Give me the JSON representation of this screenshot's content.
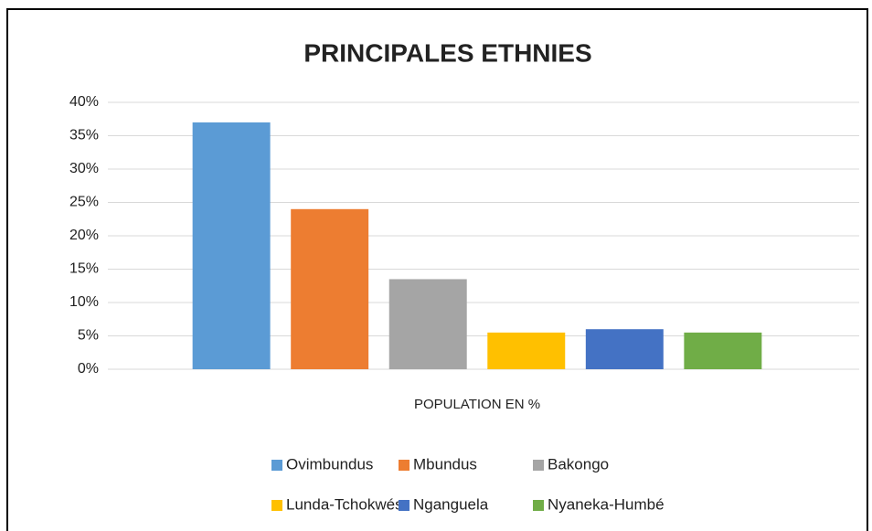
{
  "chart_data": {
    "type": "bar",
    "title": "PRINCIPALES ETHNIES",
    "categories": [
      "POPULATION EN %"
    ],
    "series": [
      {
        "name": "Ovimbundus",
        "color": "#5b9bd5",
        "values": [
          37
        ]
      },
      {
        "name": "Mbundus",
        "color": "#ed7d31",
        "values": [
          24
        ]
      },
      {
        "name": "Bakongo",
        "color": "#a5a5a5",
        "values": [
          13.5
        ]
      },
      {
        "name": "Lunda-Tchokwés",
        "color": "#ffc000",
        "values": [
          5.5
        ]
      },
      {
        "name": "Nganguela",
        "color": "#4472c4",
        "values": [
          6
        ]
      },
      {
        "name": "Nyaneka-Humbé",
        "color": "#70ad47",
        "values": [
          5.5
        ]
      }
    ],
    "ylim": [
      0,
      40
    ],
    "yticks": [
      {
        "value": 0,
        "label": "0%"
      },
      {
        "value": 5,
        "label": "5%"
      },
      {
        "value": 10,
        "label": "10%"
      },
      {
        "value": 15,
        "label": "15%"
      },
      {
        "value": 20,
        "label": "20%"
      },
      {
        "value": 25,
        "label": "25%"
      },
      {
        "value": 30,
        "label": "30%"
      },
      {
        "value": 35,
        "label": "35%"
      },
      {
        "value": 40,
        "label": "40%"
      }
    ],
    "grid": true,
    "legend": "bottom"
  }
}
